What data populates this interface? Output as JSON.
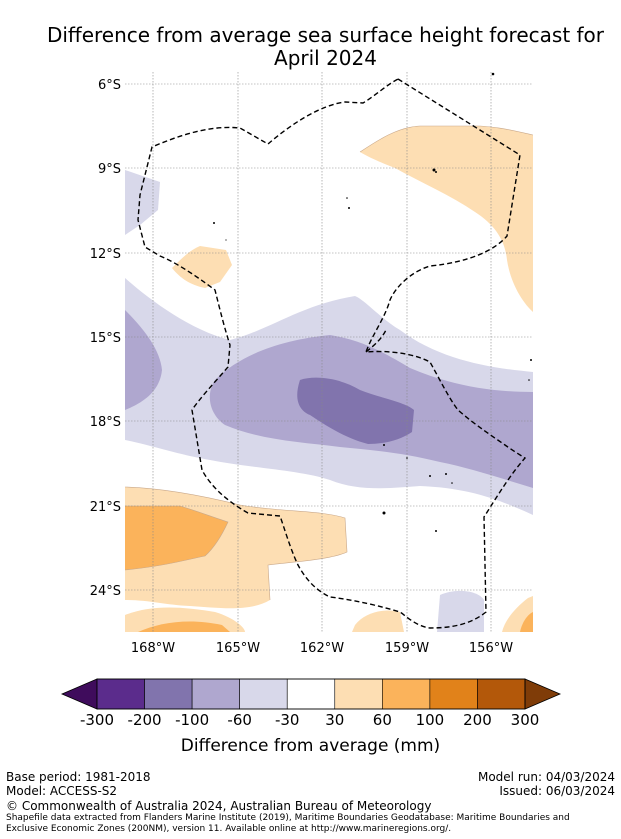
{
  "title_line1": "Difference from average sea surface height forecast for",
  "title_line2": "April 2024",
  "map": {
    "lat_labels": [
      "6°S",
      "9°S",
      "12°S",
      "15°S",
      "18°S",
      "21°S",
      "24°S"
    ],
    "lon_labels": [
      "168°W",
      "165°W",
      "162°W",
      "159°W",
      "156°W"
    ]
  },
  "colorbar": {
    "levels": [
      "-300",
      "-200",
      "-100",
      "-60",
      "-30",
      "30",
      "60",
      "100",
      "200",
      "300"
    ],
    "colors": [
      "#3f0c5c",
      "#5b2c8c",
      "#8174ad",
      "#afa7cf",
      "#d8d8ea",
      "#ffffff",
      "#fddeb3",
      "#fbb35b",
      "#e1821a",
      "#b3580a",
      "#7f3c08"
    ],
    "title": "Difference from average (mm)"
  },
  "footer": {
    "base_period": "Base period: 1981-2018",
    "model": "Model: ACCESS-S2",
    "model_run": "Model run: 04/03/2024",
    "issued": "Issued: 06/03/2024",
    "copyright": "© Commonwealth of Australia 2024, Australian Bureau of Meteorology",
    "shapefile_line1": "Shapefile data extracted from Flanders Marine Institute (2019), Maritime Boundaries Geodatabase: Maritime Boundaries and",
    "shapefile_line2": "Exclusive Economic Zones (200NM), version 11. Available online at http://www.marineregions.org/."
  }
}
